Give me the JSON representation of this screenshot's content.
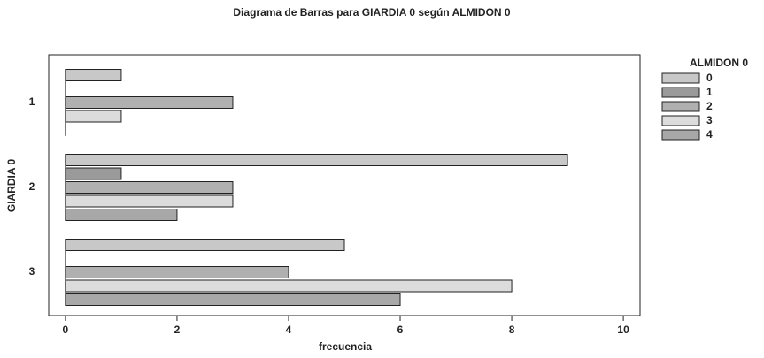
{
  "chart_data": {
    "type": "bar",
    "orientation": "horizontal",
    "title": "Diagrama de Barras para GIARDIA 0 según ALMIDON 0",
    "x_label": "frecuencia",
    "y_label": "GIARDIA 0",
    "legend_title": "ALMIDON 0",
    "legend": "right",
    "categories": [
      "1",
      "2",
      "3"
    ],
    "series": [
      {
        "name": "0",
        "color": "#c8c8c8",
        "values": [
          1,
          9,
          5
        ]
      },
      {
        "name": "1",
        "color": "#9a9a9a",
        "values": [
          0,
          1,
          0
        ]
      },
      {
        "name": "2",
        "color": "#b0b0b0",
        "values": [
          3,
          3,
          4
        ]
      },
      {
        "name": "3",
        "color": "#dcdcdc",
        "values": [
          1,
          3,
          8
        ]
      },
      {
        "name": "4",
        "color": "#a8a8a8",
        "values": [
          0,
          2,
          6
        ]
      }
    ],
    "xlim": [
      -0.3,
      10.3
    ],
    "xticks": [
      0,
      2,
      4,
      6,
      8,
      10
    ]
  }
}
